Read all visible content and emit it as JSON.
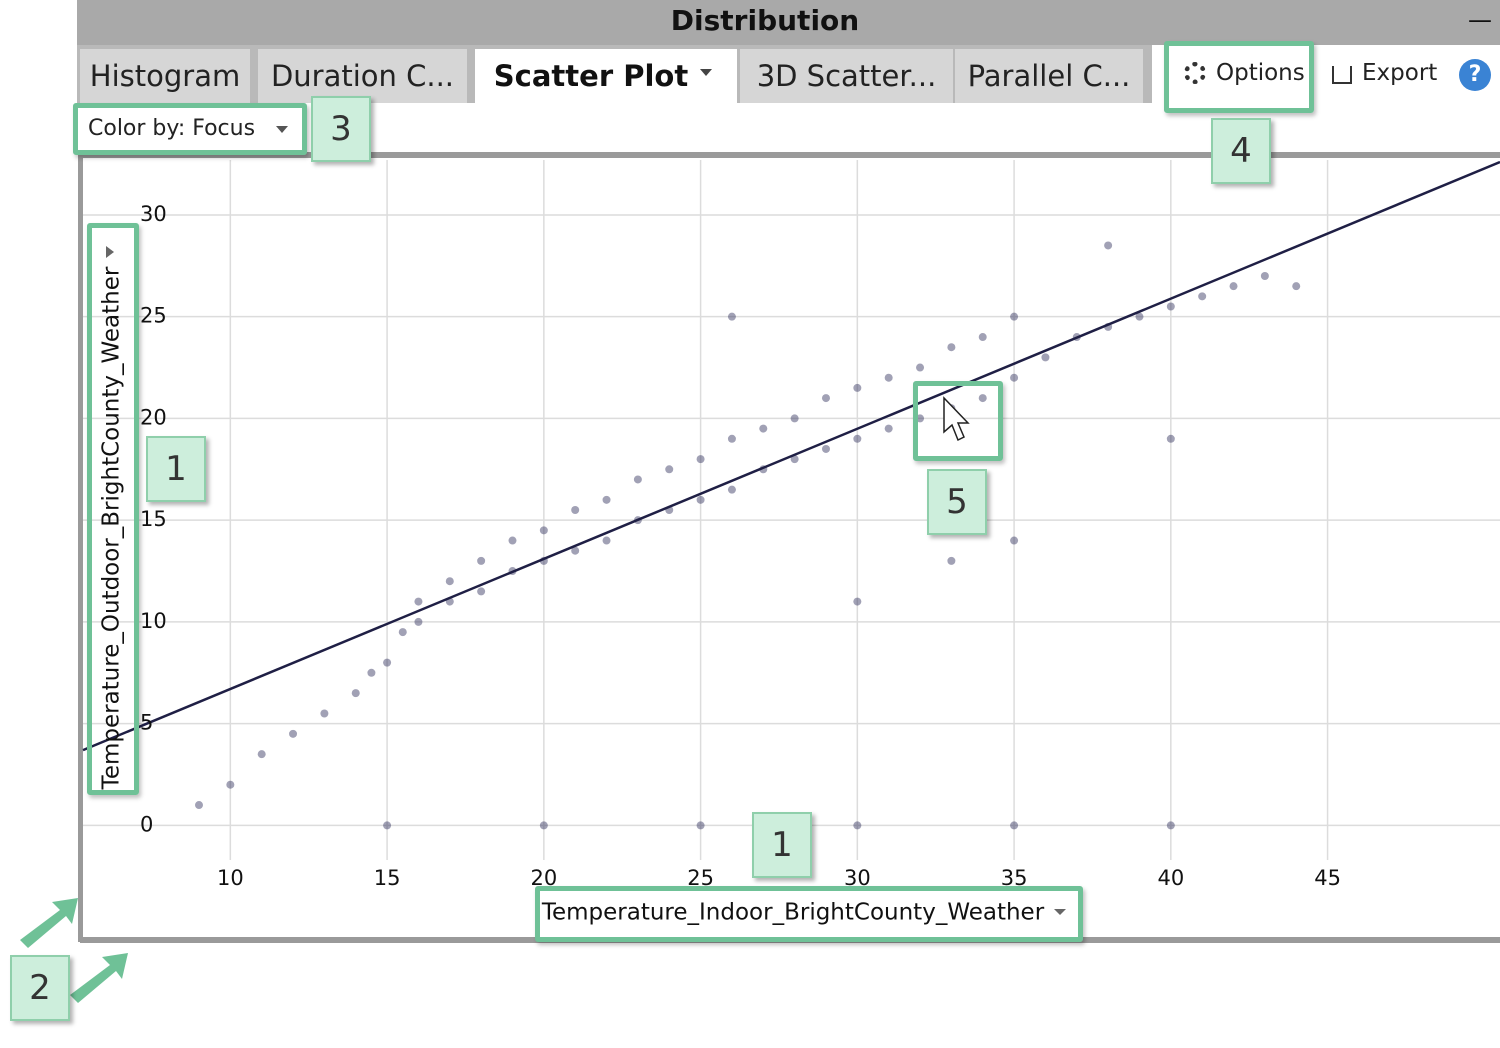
{
  "window": {
    "title": "Distribution",
    "minimize": "—"
  },
  "tabs": [
    "Histogram",
    "Duration C...",
    "Scatter Plot",
    "3D Scatter...",
    "Parallel C..."
  ],
  "toolbar": {
    "options": "Options",
    "export": "Export",
    "help": "?",
    "color_by": "Color by: Focus"
  },
  "callouts": [
    "1",
    "1",
    "2",
    "3",
    "4",
    "5"
  ],
  "chart_data": {
    "type": "scatter",
    "x_label": "Temperature_Indoor_BrightCounty_Weather",
    "y_label": "Temperature_Outdoor_BrightCounty_Weather",
    "xlim": [
      5.3,
      50.5
    ],
    "ylim": [
      -1.7,
      32.7
    ],
    "xticks": [
      10,
      15,
      20,
      25,
      30,
      35,
      40,
      45
    ],
    "yticks": [
      0,
      5,
      10,
      15,
      20,
      25,
      30
    ],
    "grid": true,
    "color": "#2e2e5a",
    "x": [
      9,
      10,
      11,
      12,
      13,
      14,
      14.5,
      15,
      15.5,
      16,
      16,
      17,
      17,
      18,
      18,
      19,
      19,
      20,
      20,
      21,
      21,
      22,
      22,
      23,
      23,
      24,
      24,
      25,
      25,
      26,
      26,
      27,
      27,
      28,
      28,
      29,
      29,
      30,
      30,
      31,
      31,
      32,
      32,
      33,
      33,
      34,
      34,
      35,
      35,
      36,
      37,
      38,
      39,
      40,
      41,
      42,
      43,
      44,
      30,
      35,
      40,
      38,
      15,
      20,
      25,
      30,
      35,
      40,
      26,
      33
    ],
    "values": [
      1,
      2,
      3.5,
      4.5,
      5.5,
      6.5,
      7.5,
      8,
      9.5,
      10,
      11,
      11,
      12,
      11.5,
      13,
      12.5,
      14,
      13,
      14.5,
      13.5,
      15.5,
      14,
      16,
      15,
      17,
      15.5,
      17.5,
      16,
      18,
      16.5,
      19,
      17.5,
      19.5,
      18,
      20,
      18.5,
      21,
      19,
      21.5,
      19.5,
      22,
      20,
      22.5,
      20.5,
      23.5,
      21,
      24,
      22,
      25,
      23,
      24,
      24.5,
      25,
      25.5,
      26,
      26.5,
      27,
      26.5,
      11,
      14,
      19,
      28.5,
      0,
      0,
      0,
      0,
      0,
      0,
      25,
      13
    ],
    "fit": {
      "x": [
        5.3,
        50.5
      ],
      "values": [
        3.7,
        32.6
      ],
      "color": "#1f1f45"
    }
  }
}
